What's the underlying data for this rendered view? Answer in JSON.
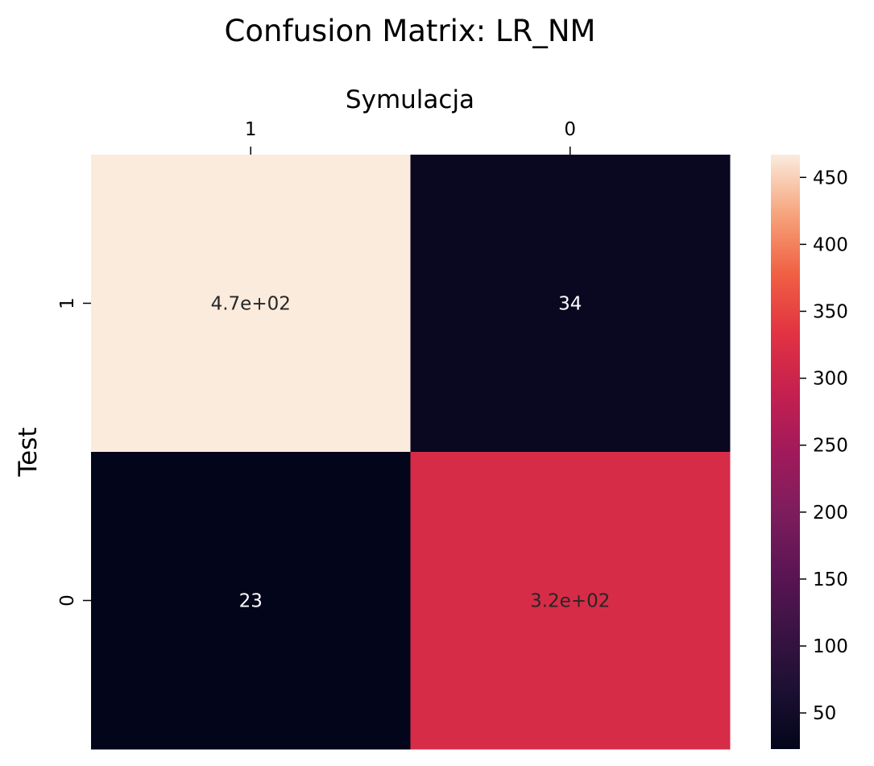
{
  "chart_data": {
    "type": "heatmap",
    "title": "Confusion Matrix: LR_NM",
    "xlabel": "Symulacja",
    "ylabel": "Test",
    "x_ticks": [
      "1",
      "0"
    ],
    "y_ticks": [
      "1",
      "0"
    ],
    "values": [
      [
        467,
        34
      ],
      [
        23,
        318
      ]
    ],
    "annotations": [
      [
        "4.7e+02",
        "34"
      ],
      [
        "23",
        "3.2e+02"
      ]
    ],
    "colormap": "rocket",
    "vmin": 23,
    "vmax": 467,
    "colorbar_ticks": [
      50,
      100,
      150,
      200,
      250,
      300,
      350,
      400,
      450
    ],
    "colorbar_tick_labels": [
      "50",
      "100",
      "150",
      "200",
      "250",
      "300",
      "350",
      "400",
      "450"
    ],
    "xaxis_position": "top"
  }
}
